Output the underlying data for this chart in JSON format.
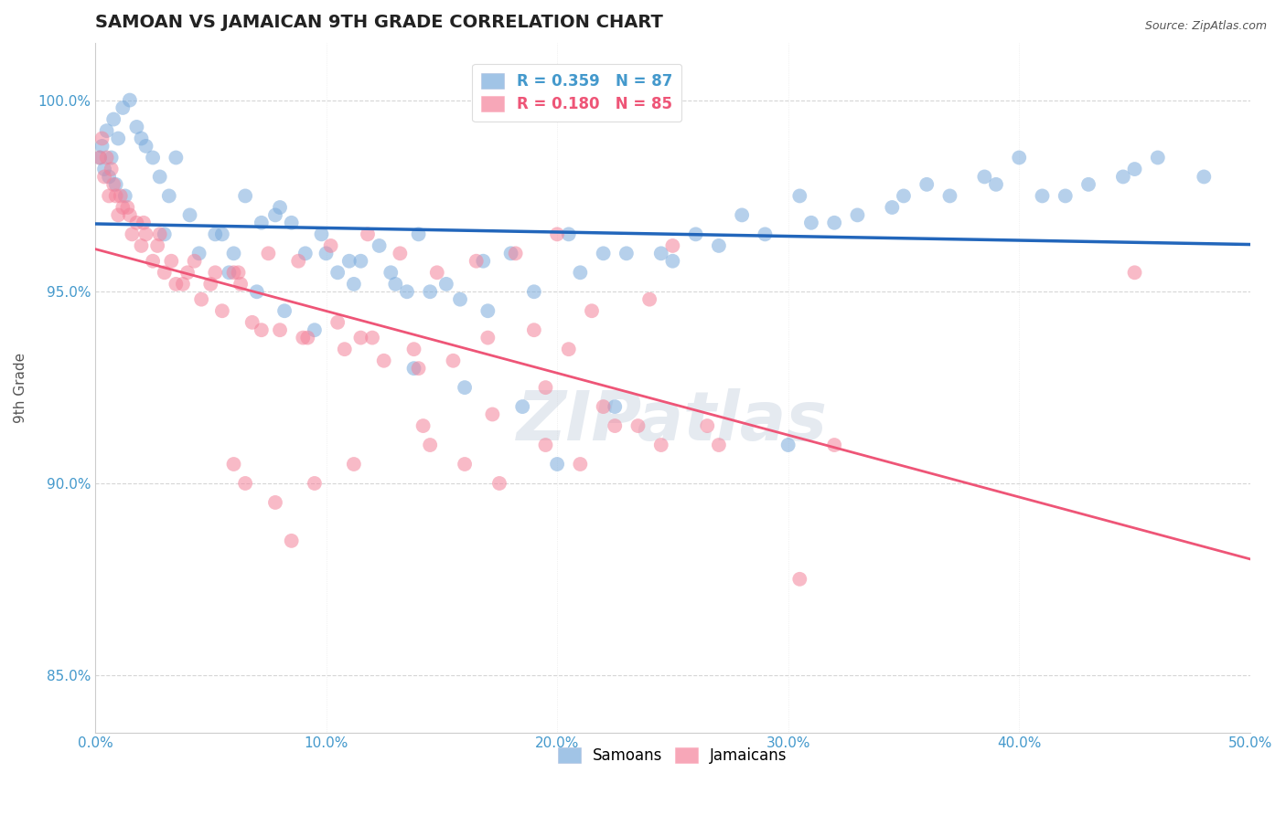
{
  "title": "SAMOAN VS JAMAICAN 9TH GRADE CORRELATION CHART",
  "source": "Source: ZipAtlas.com",
  "ylabel": "9th Grade",
  "xlim": [
    0.0,
    50.0
  ],
  "ylim": [
    83.5,
    101.5
  ],
  "xtick_values": [
    0,
    10,
    20,
    30,
    40,
    50
  ],
  "ytick_values": [
    85.0,
    90.0,
    95.0,
    100.0
  ],
  "blue_legend_label": "R = 0.359   N = 87",
  "pink_legend_label": "R = 0.180   N = 85",
  "blue_color": "#7aabdc",
  "pink_color": "#f4829a",
  "blue_line_color": "#2266bb",
  "pink_line_color": "#ee5577",
  "watermark": "ZIPatlas",
  "samoans_label": "Samoans",
  "jamaicans_label": "Jamaicans",
  "blue_scatter_x": [
    0.2,
    0.3,
    0.4,
    0.5,
    0.6,
    0.7,
    0.8,
    0.9,
    1.0,
    1.2,
    1.3,
    1.5,
    1.8,
    2.0,
    2.2,
    2.5,
    2.8,
    3.0,
    3.2,
    3.5,
    4.1,
    4.5,
    5.2,
    5.5,
    5.8,
    6.0,
    6.5,
    7.0,
    7.2,
    7.8,
    8.0,
    8.2,
    8.5,
    9.1,
    9.5,
    9.8,
    10.0,
    10.5,
    11.0,
    11.2,
    11.5,
    12.3,
    12.8,
    13.0,
    13.5,
    13.8,
    14.0,
    14.5,
    15.2,
    15.8,
    16.0,
    16.8,
    17.0,
    18.0,
    18.5,
    19.0,
    20.0,
    20.5,
    21.0,
    22.0,
    22.5,
    23.0,
    24.5,
    25.0,
    26.0,
    27.0,
    28.0,
    29.0,
    30.0,
    30.5,
    31.0,
    32.0,
    33.0,
    34.5,
    35.0,
    36.0,
    37.0,
    38.5,
    39.0,
    40.0,
    41.0,
    42.0,
    43.0,
    44.5,
    45.0,
    46.0,
    48.0
  ],
  "blue_scatter_y": [
    98.5,
    98.8,
    98.2,
    99.2,
    98.0,
    98.5,
    99.5,
    97.8,
    99.0,
    99.8,
    97.5,
    100.0,
    99.3,
    99.0,
    98.8,
    98.5,
    98.0,
    96.5,
    97.5,
    98.5,
    97.0,
    96.0,
    96.5,
    96.5,
    95.5,
    96.0,
    97.5,
    95.0,
    96.8,
    97.0,
    97.2,
    94.5,
    96.8,
    96.0,
    94.0,
    96.5,
    96.0,
    95.5,
    95.8,
    95.2,
    95.8,
    96.2,
    95.5,
    95.2,
    95.0,
    93.0,
    96.5,
    95.0,
    95.2,
    94.8,
    92.5,
    95.8,
    94.5,
    96.0,
    92.0,
    95.0,
    90.5,
    96.5,
    95.5,
    96.0,
    92.0,
    96.0,
    96.0,
    95.8,
    96.5,
    96.2,
    97.0,
    96.5,
    91.0,
    97.5,
    96.8,
    96.8,
    97.0,
    97.2,
    97.5,
    97.8,
    97.5,
    98.0,
    97.8,
    98.5,
    97.5,
    97.5,
    97.8,
    98.0,
    98.2,
    98.5,
    98.0
  ],
  "pink_scatter_x": [
    0.2,
    0.3,
    0.4,
    0.5,
    0.6,
    0.7,
    0.8,
    0.9,
    1.0,
    1.1,
    1.2,
    1.4,
    1.5,
    1.6,
    1.8,
    2.0,
    2.1,
    2.2,
    2.5,
    2.7,
    2.8,
    3.0,
    3.3,
    3.5,
    3.8,
    4.0,
    4.3,
    4.6,
    5.0,
    5.2,
    5.5,
    6.0,
    6.2,
    6.3,
    6.8,
    7.2,
    7.5,
    8.0,
    8.8,
    9.0,
    9.2,
    10.2,
    10.5,
    10.8,
    11.5,
    11.8,
    12.0,
    12.5,
    13.2,
    13.8,
    14.0,
    14.2,
    14.8,
    15.5,
    16.5,
    17.0,
    17.2,
    17.5,
    18.2,
    19.0,
    19.5,
    20.0,
    20.5,
    21.5,
    22.0,
    22.5,
    24.0,
    24.5,
    25.0,
    26.5,
    32.0,
    6.0,
    8.5,
    6.5,
    7.8,
    9.5,
    11.2,
    16.0,
    19.5,
    21.0,
    23.5,
    27.0,
    30.5,
    45.0,
    14.5
  ],
  "pink_scatter_y": [
    98.5,
    99.0,
    98.0,
    98.5,
    97.5,
    98.2,
    97.8,
    97.5,
    97.0,
    97.5,
    97.2,
    97.2,
    97.0,
    96.5,
    96.8,
    96.2,
    96.8,
    96.5,
    95.8,
    96.2,
    96.5,
    95.5,
    95.8,
    95.2,
    95.2,
    95.5,
    95.8,
    94.8,
    95.2,
    95.5,
    94.5,
    95.5,
    95.5,
    95.2,
    94.2,
    94.0,
    96.0,
    94.0,
    95.8,
    93.8,
    93.8,
    96.2,
    94.2,
    93.5,
    93.8,
    96.5,
    93.8,
    93.2,
    96.0,
    93.5,
    93.0,
    91.5,
    95.5,
    93.2,
    95.8,
    93.8,
    91.8,
    90.0,
    96.0,
    94.0,
    92.5,
    96.5,
    93.5,
    94.5,
    92.0,
    91.5,
    94.8,
    91.0,
    96.2,
    91.5,
    91.0,
    90.5,
    88.5,
    90.0,
    89.5,
    90.0,
    90.5,
    90.5,
    91.0,
    90.5,
    91.5,
    91.0,
    87.5,
    95.5,
    91.0
  ]
}
